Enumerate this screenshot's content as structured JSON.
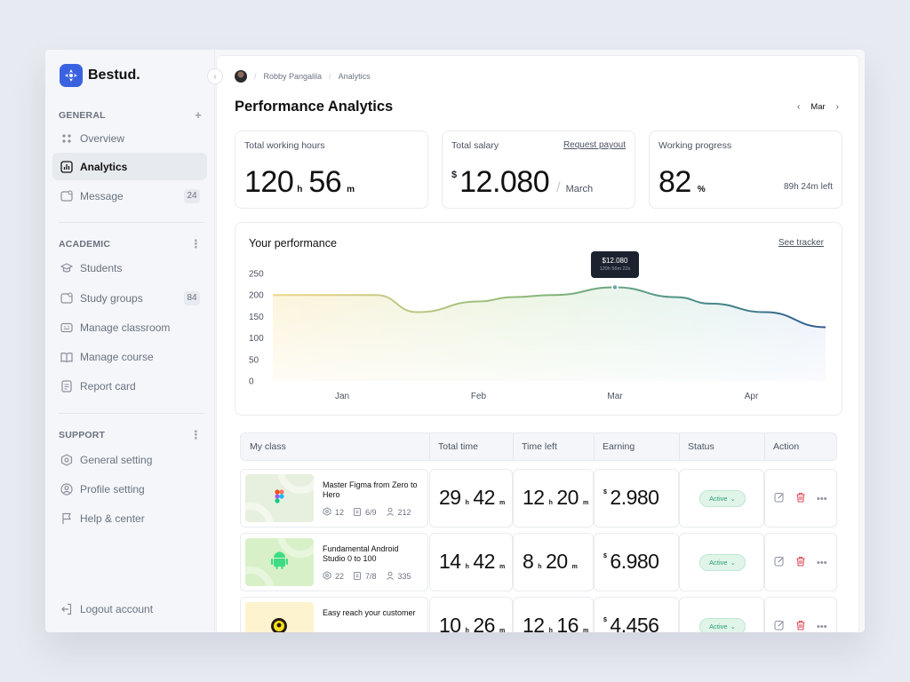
{
  "brand": {
    "name": "Bestud."
  },
  "sidebar": {
    "general": {
      "title": "GENERAL",
      "items": [
        {
          "label": "Overview",
          "icon": "grid-dots-icon"
        },
        {
          "label": "Analytics",
          "icon": "bar-chart-icon",
          "active": true
        },
        {
          "label": "Message",
          "icon": "message-icon",
          "badge": "24"
        }
      ]
    },
    "academic": {
      "title": "ACADEMIC",
      "items": [
        {
          "label": "Students",
          "icon": "graduation-cap-icon"
        },
        {
          "label": "Study groups",
          "icon": "group-icon",
          "badge": "84"
        },
        {
          "label": "Manage classroom",
          "icon": "classroom-icon"
        },
        {
          "label": "Manage course",
          "icon": "book-icon"
        },
        {
          "label": "Report card",
          "icon": "report-icon"
        }
      ]
    },
    "support": {
      "title": "SUPPORT",
      "items": [
        {
          "label": "General setting",
          "icon": "hexagon-gear-icon"
        },
        {
          "label": "Profile setting",
          "icon": "user-circle-icon"
        },
        {
          "label": "Help & center",
          "icon": "flag-icon"
        }
      ]
    },
    "logout": "Logout account"
  },
  "breadcrumb": {
    "user": "Robby Pangalila",
    "page": "Analytics"
  },
  "header": {
    "title": "Performance Analytics",
    "month": "Mar"
  },
  "stats": {
    "hours": {
      "label": "Total working hours",
      "h": "120",
      "h_unit": "h",
      "m": "56",
      "m_unit": "m"
    },
    "salary": {
      "label": "Total salary",
      "link": "Request payout",
      "currency": "$",
      "value": "12.080",
      "period": "March"
    },
    "progress": {
      "label": "Working progress",
      "value": "82",
      "unit": "%",
      "left": "89h 24m left"
    }
  },
  "performance": {
    "title": "Your performance",
    "link": "See tracker",
    "tooltip": {
      "value": "$12.080",
      "sub": "120h 56m 22s"
    }
  },
  "chart_data": {
    "type": "area",
    "title": "Your performance",
    "x_ticks": [
      "Jan",
      "Feb",
      "Mar",
      "Apr"
    ],
    "y_ticks": [
      "250",
      "200",
      "150",
      "100",
      "50",
      "0"
    ],
    "ylim": [
      0,
      250
    ],
    "x": [
      0.0,
      0.25,
      0.55,
      1.0,
      1.25,
      1.55,
      2.0,
      2.45,
      2.7,
      3.1,
      3.4
    ],
    "values": [
      200,
      200,
      160,
      185,
      195,
      200,
      218,
      195,
      180,
      160,
      125
    ],
    "highlight": {
      "x": 2.0,
      "value": 218
    },
    "grid": false
  },
  "table": {
    "headers": {
      "class": "My class",
      "total": "Total time",
      "left": "Time left",
      "earning": "Earning",
      "status": "Status",
      "action": "Action"
    },
    "rows": [
      {
        "title": "Master Figma from Zero to Hero",
        "thumb": "figma-logo-icon",
        "m1": "12",
        "m2": "6/9",
        "m3": "212",
        "t_h": "29",
        "t_m": "42",
        "l_h": "12",
        "l_m": "20",
        "cur": "$",
        "earn": "2.980",
        "status": "Active"
      },
      {
        "title": "Fundamental Android Studio 0 to 100",
        "thumb": "android-logo-icon",
        "m1": "22",
        "m2": "7/8",
        "m3": "335",
        "t_h": "14",
        "t_m": "42",
        "l_h": "8",
        "l_m": "20",
        "cur": "$",
        "earn": "6.980",
        "status": "Active"
      },
      {
        "title": "Easy reach your customer",
        "thumb": "mailchimp-logo-icon",
        "m1": "",
        "m2": "",
        "m3": "",
        "t_h": "10",
        "t_m": "26",
        "l_h": "12",
        "l_m": "16",
        "cur": "$",
        "earn": "4.456",
        "status": "Active"
      }
    ],
    "units": {
      "h": "h",
      "m": "m"
    }
  },
  "colors": {
    "accent": "#3a62e0",
    "active_green": "#27a468",
    "danger": "#e0485a"
  }
}
